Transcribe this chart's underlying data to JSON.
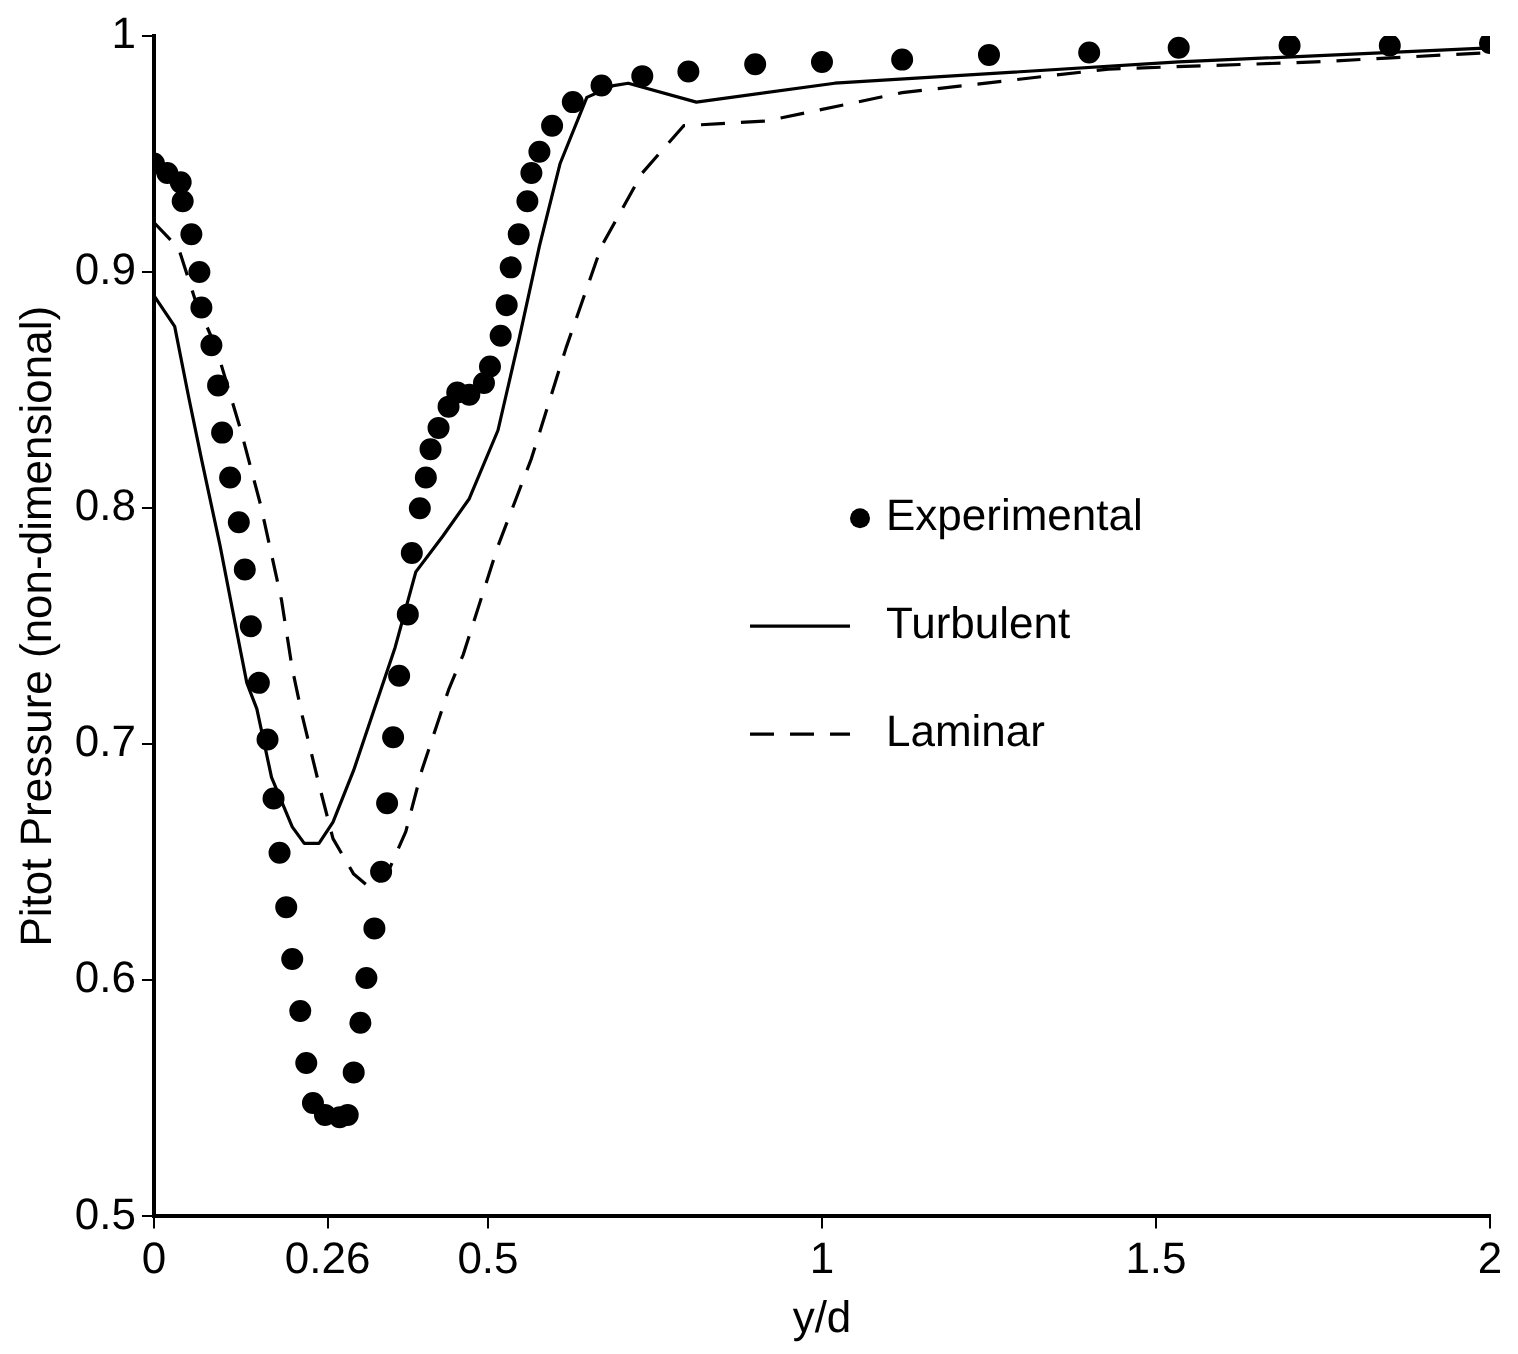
{
  "chart_data": {
    "type": "line",
    "xlabel": "y/d",
    "ylabel": "Pitot Pressure (non-dimensional)",
    "xlim": [
      0,
      2
    ],
    "ylim": [
      0.5,
      1
    ],
    "xticks": [
      0,
      0.26,
      0.5,
      1,
      1.5,
      2
    ],
    "yticks": [
      0.5,
      0.6,
      0.7,
      0.8,
      0.9,
      1
    ],
    "grid": false,
    "legend": "right",
    "series": [
      {
        "name": "Experimental",
        "type": "scatter",
        "marker": "circle",
        "color": "#000000",
        "x": [
          0,
          0.02,
          0.04,
          0.043,
          0.056,
          0.068,
          0.071,
          0.086,
          0.096,
          0.102,
          0.114,
          0.127,
          0.136,
          0.145,
          0.157,
          0.17,
          0.179,
          0.188,
          0.198,
          0.207,
          0.219,
          0.228,
          0.238,
          0.256,
          0.278,
          0.29,
          0.299,
          0.309,
          0.318,
          0.33,
          0.34,
          0.349,
          0.358,
          0.367,
          0.38,
          0.386,
          0.398,
          0.407,
          0.414,
          0.426,
          0.441,
          0.454,
          0.472,
          0.494,
          0.503,
          0.519,
          0.528,
          0.534,
          0.546,
          0.559,
          0.565,
          0.577,
          0.596,
          0.627,
          0.67,
          0.731,
          0.8,
          0.9,
          1.0,
          1.12,
          1.25,
          1.4,
          1.534,
          1.7,
          1.85,
          2.0
        ],
        "values": [
          0.946,
          0.942,
          0.938,
          0.93,
          0.916,
          0.9,
          0.885,
          0.869,
          0.852,
          0.832,
          0.813,
          0.794,
          0.774,
          0.75,
          0.726,
          0.702,
          0.677,
          0.654,
          0.631,
          0.609,
          0.587,
          0.565,
          0.548,
          0.543,
          0.542,
          0.543,
          0.561,
          0.582,
          0.601,
          0.622,
          0.646,
          0.675,
          0.703,
          0.729,
          0.755,
          0.781,
          0.8,
          0.813,
          0.825,
          0.834,
          0.843,
          0.849,
          0.848,
          0.853,
          0.86,
          0.873,
          0.886,
          0.902,
          0.916,
          0.93,
          0.942,
          0.951,
          0.962,
          0.972,
          0.979,
          0.983,
          0.985,
          0.988,
          0.989,
          0.99,
          0.992,
          0.993,
          0.995,
          0.996,
          0.996,
          0.997
        ]
      },
      {
        "name": "Turbulent",
        "line_style": "solid",
        "color": "#000000",
        "x": [
          0,
          0.031,
          0.052,
          0.071,
          0.099,
          0.123,
          0.139,
          0.154,
          0.176,
          0.207,
          0.225,
          0.247,
          0.268,
          0.299,
          0.33,
          0.361,
          0.392,
          0.432,
          0.472,
          0.515,
          0.546,
          0.577,
          0.608,
          0.648,
          0.688,
          0.71,
          0.812,
          1.019,
          1.534,
          2.0
        ],
        "values": [
          0.89,
          0.877,
          0.847,
          0.821,
          0.784,
          0.749,
          0.726,
          0.715,
          0.686,
          0.665,
          0.658,
          0.658,
          0.667,
          0.689,
          0.715,
          0.741,
          0.773,
          0.788,
          0.804,
          0.833,
          0.871,
          0.911,
          0.946,
          0.974,
          0.979,
          0.98,
          0.972,
          0.98,
          0.989,
          0.995
        ]
      },
      {
        "name": "Laminar",
        "line_style": "dashed",
        "color": "#000000",
        "x": [
          0,
          0.037,
          0.062,
          0.093,
          0.13,
          0.16,
          0.191,
          0.207,
          0.222,
          0.247,
          0.268,
          0.299,
          0.324,
          0.349,
          0.377,
          0.401,
          0.441,
          0.463,
          0.515,
          0.565,
          0.617,
          0.67,
          0.731,
          0.793,
          0.917,
          1.12,
          1.429,
          1.738,
          2.0
        ],
        "values": [
          0.921,
          0.91,
          0.888,
          0.868,
          0.833,
          0.801,
          0.761,
          0.732,
          0.712,
          0.683,
          0.66,
          0.645,
          0.639,
          0.645,
          0.663,
          0.689,
          0.723,
          0.738,
          0.784,
          0.821,
          0.868,
          0.911,
          0.942,
          0.962,
          0.964,
          0.976,
          0.986,
          0.989,
          0.993
        ]
      }
    ]
  }
}
